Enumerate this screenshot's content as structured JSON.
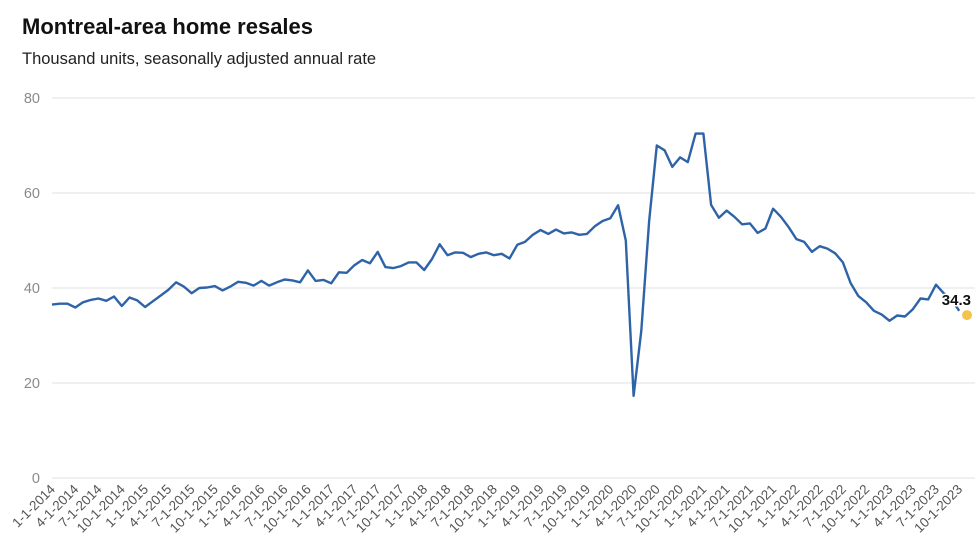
{
  "chart_data": {
    "type": "line",
    "title": "Montreal-area home resales",
    "subtitle": "Thousand units, seasonally adjusted annual rate",
    "xlabel": "",
    "ylabel": "",
    "ylim": [
      0,
      80
    ],
    "yticks": [
      0,
      20,
      40,
      60,
      80
    ],
    "grid": true,
    "legend": "none",
    "colors": {
      "line": "#2f63a8",
      "marker": "#f2c44d",
      "grid": "#e2e2e2"
    },
    "x_tick_labels": [
      "1-1-2014",
      "4-1-2014",
      "7-1-2014",
      "10-1-2014",
      "1-1-2015",
      "4-1-2015",
      "7-1-2015",
      "10-1-2015",
      "1-1-2016",
      "4-1-2016",
      "7-1-2016",
      "10-1-2016",
      "1-1-2017",
      "4-1-2017",
      "7-1-2017",
      "10-1-2017",
      "1-1-2018",
      "4-1-2018",
      "7-1-2018",
      "10-1-2018",
      "1-1-2019",
      "4-1-2019",
      "7-1-2019",
      "10-1-2019",
      "1-1-2020",
      "4-1-2020",
      "7-1-2020",
      "10-1-2020",
      "1-1-2021",
      "4-1-2021",
      "7-1-2021",
      "10-1-2021",
      "1-1-2022",
      "4-1-2022",
      "7-1-2022",
      "10-1-2022",
      "1-1-2023",
      "4-1-2023",
      "7-1-2023",
      "10-1-2023"
    ],
    "x_start": "2014-01",
    "x_end": "2023-11",
    "series": [
      {
        "values": [
          36.5,
          36.7,
          36.7,
          35.9,
          37.0,
          37.5,
          37.8,
          37.3,
          38.2,
          36.2,
          38.0,
          37.4,
          36.0,
          37.2,
          38.4,
          39.6,
          41.2,
          40.3,
          38.9,
          40.0,
          40.1,
          40.4,
          39.5,
          40.3,
          41.3,
          41.1,
          40.5,
          41.5,
          40.5,
          41.2,
          41.8,
          41.6,
          41.2,
          43.7,
          41.5,
          41.7,
          41.0,
          43.3,
          43.2,
          44.8,
          45.9,
          45.2,
          47.6,
          44.4,
          44.2,
          44.6,
          45.4,
          45.4,
          43.8,
          46.1,
          49.2,
          46.9,
          47.5,
          47.4,
          46.5,
          47.2,
          47.5,
          46.9,
          47.2,
          46.2,
          49.1,
          49.7,
          51.2,
          52.2,
          51.4,
          52.3,
          51.5,
          51.7,
          51.2,
          51.4,
          53.0,
          54.1,
          54.7,
          57.4,
          50.0,
          17.3,
          31.0,
          54.0,
          70.0,
          69.0,
          65.5,
          67.5,
          66.5,
          72.5,
          72.5,
          57.5,
          54.8,
          56.3,
          55.0,
          53.4,
          53.6,
          51.6,
          52.5,
          56.7,
          55.0,
          52.8,
          50.3,
          49.7,
          47.6,
          48.8,
          48.3,
          47.3,
          45.4,
          41.0,
          38.3,
          37.0,
          35.2,
          34.4,
          33.1,
          34.2,
          34.0,
          35.5,
          37.8,
          37.6,
          40.7,
          38.9,
          37.6,
          35.2
        ],
        "last_value": 34.3,
        "last_label": "34.3"
      }
    ]
  }
}
